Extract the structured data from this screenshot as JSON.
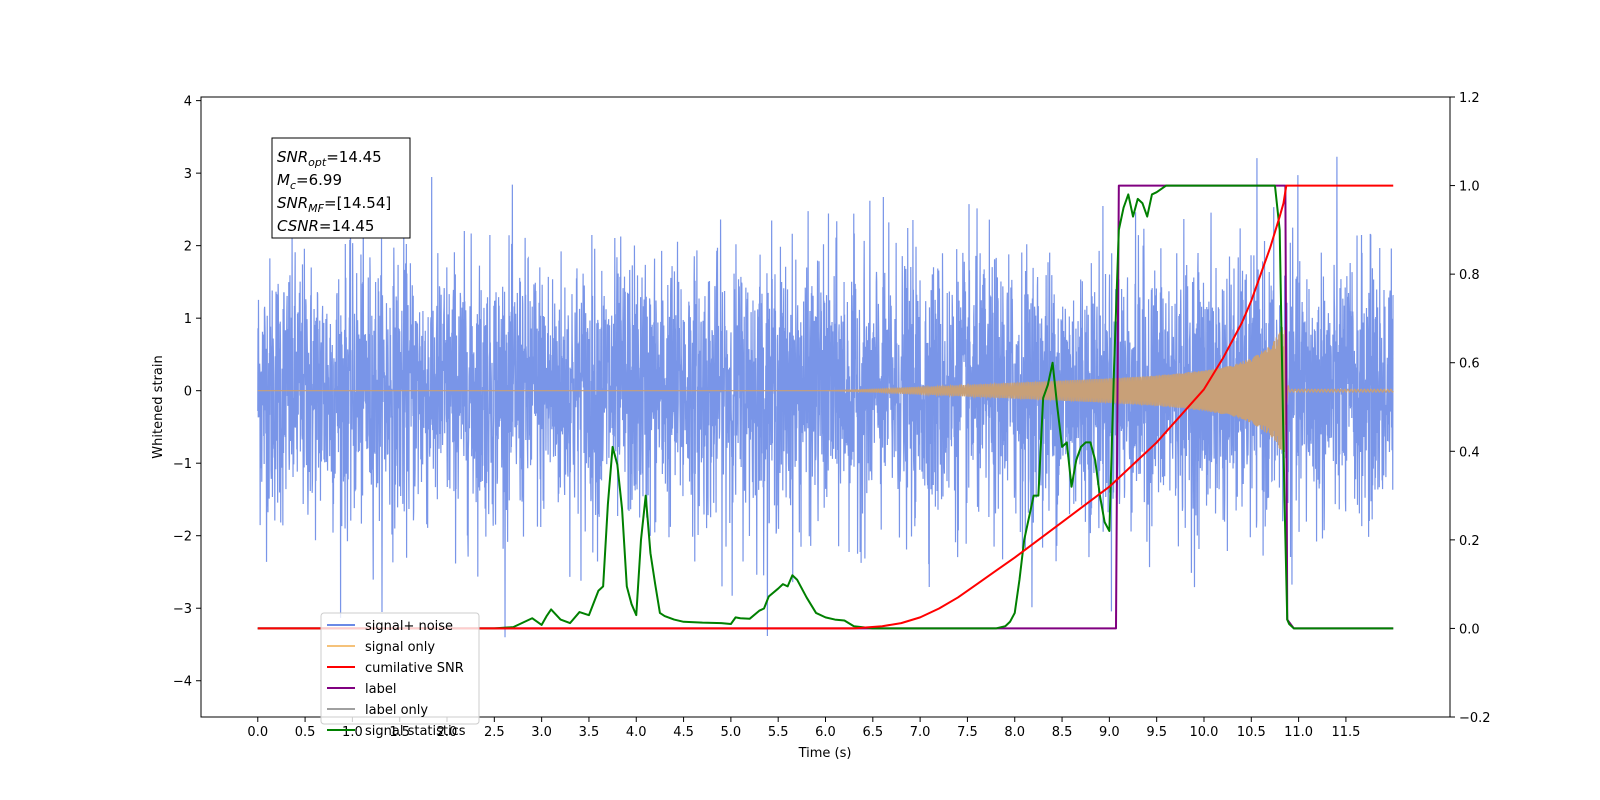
{
  "chart_data": {
    "type": "line",
    "xlabel": "Time (s)",
    "ylabel": "Whitened strain",
    "x_ticks": [
      0.0,
      0.5,
      1.0,
      1.5,
      2.0,
      2.5,
      3.0,
      3.5,
      4.0,
      4.5,
      5.0,
      5.5,
      6.0,
      6.5,
      7.0,
      7.5,
      8.0,
      8.5,
      9.0,
      9.5,
      10.0,
      10.5,
      11.0,
      11.5
    ],
    "xlim": [
      -0.6,
      12.6
    ],
    "ylim_left": [
      -4.5,
      4.05
    ],
    "yticks_left": [
      -4,
      -3,
      -2,
      -1,
      0,
      1,
      2,
      3,
      4
    ],
    "ylim_right": [
      -0.2,
      1.2
    ],
    "yticks_right": [
      -0.2,
      0.0,
      0.2,
      0.4,
      0.6,
      0.8,
      1.0,
      1.2
    ],
    "annotation": {
      "lines": [
        {
          "base": "SNR",
          "sub": "opt",
          "value": "=14.45"
        },
        {
          "base": "M",
          "sub": "c",
          "value": "=6.99"
        },
        {
          "base": "SNR",
          "sub": "MF",
          "value": "=[14.54]"
        },
        {
          "base": "CSNR",
          "sub": "",
          "value": "=14.45"
        }
      ]
    },
    "legend": {
      "position": "lower-left",
      "entries": [
        {
          "label": "signal+ noise",
          "color": "#6a8ae6"
        },
        {
          "label": "signal only",
          "color": "#f5c27a"
        },
        {
          "label": "cumilative SNR",
          "color": "#ff0000"
        },
        {
          "label": "label",
          "color": "#800080"
        },
        {
          "label": "label only",
          "color": "#a0a0a0"
        },
        {
          "label": "signal statistics",
          "color": "#008000"
        }
      ]
    },
    "series": [
      {
        "label": "signal+ noise",
        "axis": "left",
        "color": "#6a8ae6",
        "kind": "noise",
        "t_start": 0.0,
        "t_end": 12.0,
        "typical_envelope": 1.8,
        "peak_max": 3.62,
        "peak_min": -3.4
      },
      {
        "label": "signal only",
        "axis": "left",
        "color": "#c8a078",
        "kind": "chirp",
        "envelope_t": [
          0.0,
          6.0,
          6.5,
          7.0,
          7.5,
          8.0,
          8.5,
          9.0,
          9.5,
          10.0,
          10.3,
          10.5,
          10.7,
          10.8,
          10.85,
          10.87,
          10.9,
          12.0
        ],
        "envelope_a": [
          0.0,
          0.0,
          0.02,
          0.05,
          0.08,
          0.11,
          0.14,
          0.17,
          0.21,
          0.28,
          0.35,
          0.45,
          0.62,
          0.8,
          0.95,
          0.2,
          0.02,
          0.02
        ]
      },
      {
        "label": "cumilative SNR",
        "axis": "right",
        "color": "#ff0000",
        "x": [
          0.0,
          6.3,
          6.6,
          6.8,
          7.0,
          7.2,
          7.4,
          7.6,
          7.8,
          8.0,
          8.5,
          9.0,
          9.5,
          10.0,
          10.2,
          10.4,
          10.5,
          10.6,
          10.7,
          10.8,
          10.84,
          10.87,
          10.9,
          12.0
        ],
        "y": [
          0.0,
          0.0,
          0.005,
          0.012,
          0.025,
          0.045,
          0.07,
          0.1,
          0.13,
          0.16,
          0.24,
          0.32,
          0.42,
          0.54,
          0.61,
          0.69,
          0.74,
          0.8,
          0.86,
          0.93,
          0.96,
          1.0,
          1.0,
          1.0
        ]
      },
      {
        "label": "label",
        "axis": "right",
        "color": "#800080",
        "x": [
          0.0,
          9.07,
          9.1,
          10.86,
          10.88,
          10.95,
          11.0,
          12.0
        ],
        "y": [
          0.0,
          0.0,
          1.0,
          1.0,
          0.02,
          0.0,
          0.0,
          0.0
        ]
      },
      {
        "label": "signal statistics",
        "axis": "right",
        "color": "#008000",
        "x": [
          0.0,
          2.5,
          2.7,
          2.9,
          3.0,
          3.05,
          3.1,
          3.2,
          3.3,
          3.4,
          3.5,
          3.6,
          3.65,
          3.7,
          3.75,
          3.8,
          3.85,
          3.9,
          3.95,
          4.0,
          4.05,
          4.1,
          4.15,
          4.2,
          4.25,
          4.3,
          4.4,
          4.5,
          4.7,
          4.9,
          5.0,
          5.05,
          5.1,
          5.2,
          5.3,
          5.35,
          5.4,
          5.5,
          5.55,
          5.6,
          5.65,
          5.7,
          5.8,
          5.9,
          6.0,
          6.1,
          6.2,
          6.3,
          6.5,
          7.0,
          7.5,
          7.8,
          7.9,
          7.95,
          8.0,
          8.05,
          8.1,
          8.2,
          8.25,
          8.3,
          8.35,
          8.4,
          8.45,
          8.5,
          8.55,
          8.6,
          8.65,
          8.7,
          8.75,
          8.8,
          8.85,
          8.9,
          8.95,
          9.0,
          9.05,
          9.1,
          9.15,
          9.2,
          9.25,
          9.3,
          9.35,
          9.4,
          9.45,
          9.5,
          9.6,
          9.7,
          9.8,
          10.0,
          10.5,
          10.75,
          10.8,
          10.85,
          10.88,
          10.9,
          10.95,
          12.0
        ],
        "y": [
          0.0,
          0.0,
          0.003,
          0.023,
          0.008,
          0.027,
          0.043,
          0.02,
          0.012,
          0.037,
          0.03,
          0.085,
          0.095,
          0.28,
          0.41,
          0.37,
          0.27,
          0.095,
          0.055,
          0.03,
          0.2,
          0.3,
          0.17,
          0.1,
          0.035,
          0.028,
          0.02,
          0.015,
          0.013,
          0.012,
          0.01,
          0.025,
          0.023,
          0.022,
          0.04,
          0.045,
          0.072,
          0.09,
          0.1,
          0.095,
          0.12,
          0.11,
          0.07,
          0.035,
          0.025,
          0.02,
          0.018,
          0.005,
          0.0,
          0.0,
          0.0,
          0.0,
          0.005,
          0.015,
          0.035,
          0.11,
          0.2,
          0.3,
          0.3,
          0.52,
          0.55,
          0.6,
          0.5,
          0.41,
          0.42,
          0.32,
          0.38,
          0.41,
          0.42,
          0.42,
          0.38,
          0.3,
          0.24,
          0.22,
          0.59,
          0.9,
          0.95,
          0.98,
          0.93,
          0.97,
          0.96,
          0.93,
          0.98,
          0.985,
          1.0,
          1.0,
          1.0,
          1.0,
          1.0,
          1.0,
          0.9,
          0.3,
          0.02,
          0.01,
          0.0,
          0.0
        ]
      }
    ]
  }
}
